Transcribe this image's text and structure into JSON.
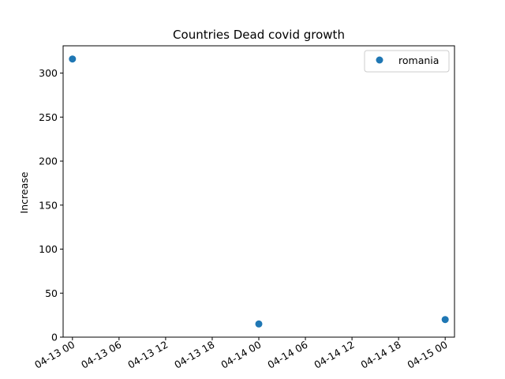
{
  "chart_data": {
    "type": "scatter",
    "title": "Countries Dead covid growth",
    "xlabel": "",
    "ylabel": "Increase",
    "x_ticks": [
      "04-13 00",
      "04-13 06",
      "04-13 12",
      "04-13 18",
      "04-14 00",
      "04-14 06",
      "04-14 12",
      "04-14 18",
      "04-15 00"
    ],
    "y_ticks": [
      "0",
      "50",
      "100",
      "150",
      "200",
      "250",
      "300"
    ],
    "y_tick_values": [
      0,
      50,
      100,
      150,
      200,
      250,
      300
    ],
    "xlim": [
      "2020-04-12 22:48",
      "2020-04-15 01:12"
    ],
    "ylim": [
      0,
      331
    ],
    "series": [
      {
        "name": "romania",
        "color": "#1f77b4",
        "x": [
          "2020-04-13 00:00",
          "2020-04-14 00:00",
          "2020-04-15 00:00"
        ],
        "y": [
          316,
          15,
          20
        ]
      }
    ],
    "legend": "top-right",
    "grid": false
  }
}
